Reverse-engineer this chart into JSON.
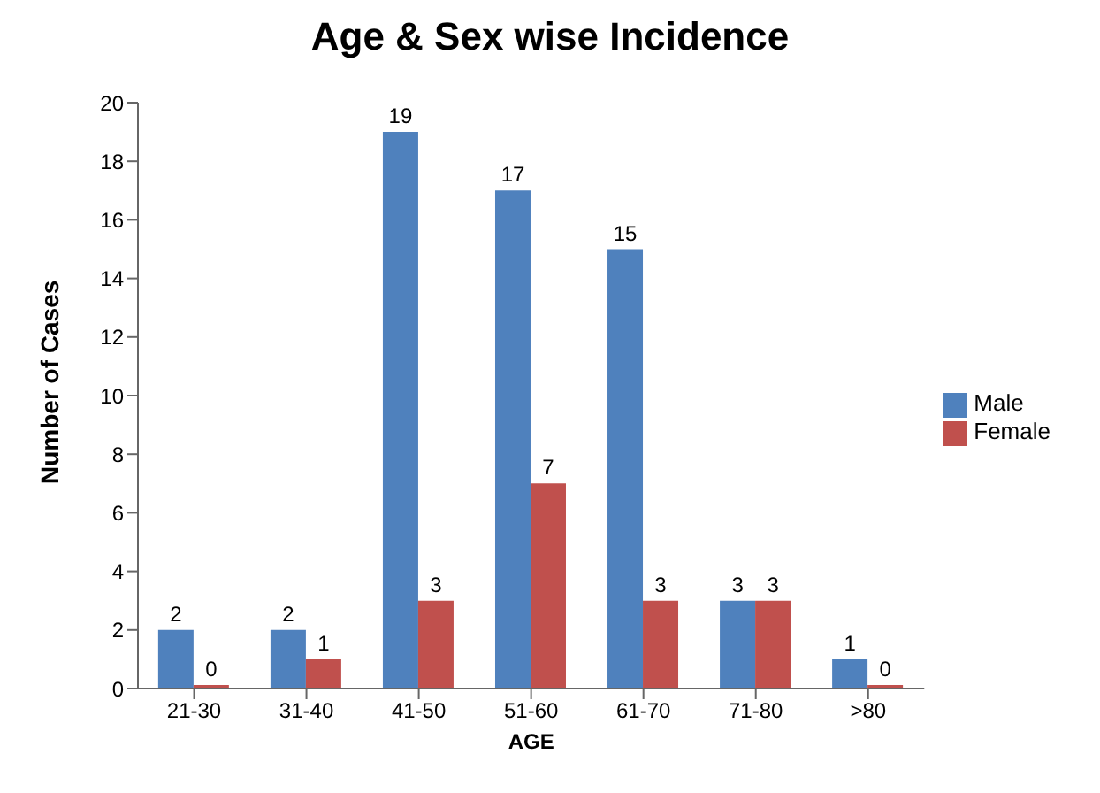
{
  "chart_data": {
    "type": "bar",
    "title": "Age & Sex wise Incidence",
    "xlabel": "AGE",
    "ylabel": "Number of Cases",
    "categories": [
      "21-30",
      "31-40",
      "41-50",
      "51-60",
      "61-70",
      "71-80",
      ">80"
    ],
    "series": [
      {
        "name": "Male",
        "color": "#4f81bd",
        "values": [
          2,
          2,
          19,
          17,
          15,
          3,
          1
        ]
      },
      {
        "name": "Female",
        "color": "#c0504d",
        "values": [
          0,
          1,
          3,
          7,
          3,
          3,
          0
        ]
      }
    ],
    "ylim": [
      0,
      20
    ],
    "yticks": [
      0,
      2,
      4,
      6,
      8,
      10,
      12,
      14,
      16,
      18,
      20
    ],
    "grid": false,
    "legend": "right",
    "data_labels": true
  }
}
